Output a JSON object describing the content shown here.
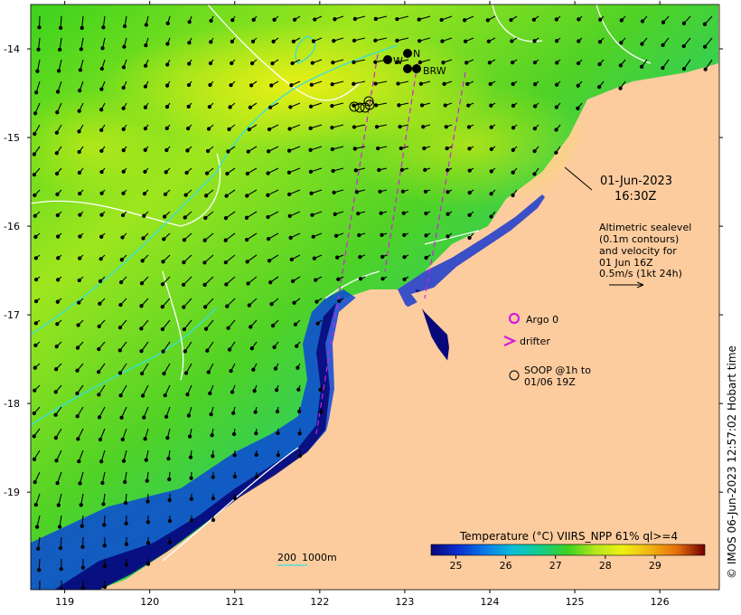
{
  "map": {
    "date": "01-Jun-2023",
    "time": "16:30Z",
    "x_ticks": [
      "119",
      "120",
      "121",
      "122",
      "123",
      "124",
      "125",
      "126"
    ],
    "y_ticks": [
      "-14",
      "-15",
      "-16",
      "-17",
      "-18",
      "-19"
    ],
    "x_range": [
      118.6,
      126.7
    ],
    "y_range": [
      -20.1,
      -13.5
    ],
    "altimetry": {
      "line1": "Altimetric sealevel",
      "line2": "(0.1m contours)",
      "line3": "and velocity for",
      "line4": "01 Jun 16Z",
      "line5": "0.5m/s (1kt 24h)"
    },
    "legend": {
      "argo": "Argo 0",
      "drifter": "drifter",
      "soop_line1": "SOOP @1h to",
      "soop_line2": "01/06 19Z"
    },
    "stations": [
      {
        "label": "W",
        "lon": 122.8,
        "lat": -14.15
      },
      {
        "label": "N",
        "lon": 123.02,
        "lat": -14.07
      },
      {
        "label": "BRW",
        "lon": 123.1,
        "lat": -14.25
      }
    ],
    "colorbar": {
      "title": "Temperature (°C) VIIRS_NPP 61% ql>=4",
      "ticks": [
        "25",
        "26",
        "27",
        "28",
        "29"
      ],
      "range": [
        24.5,
        30.0
      ],
      "colors": [
        "#08087a",
        "#0a2fd0",
        "#0aa0e6",
        "#12cc8a",
        "#3cd21e",
        "#b4e61e",
        "#f0f014",
        "#f0b414",
        "#e66e0a",
        "#b41e0a",
        "#6e0000"
      ]
    },
    "scale_bar": {
      "label1": "200",
      "label2": "1000m"
    },
    "credit": "© IMOS 06-Jun-2023 12:57:02 Hobart time",
    "land_color": "#fccc9e",
    "contour_color": "#ffffff",
    "contour_color_cyan": "#33e0e0",
    "track_color": "#d41ce0"
  }
}
